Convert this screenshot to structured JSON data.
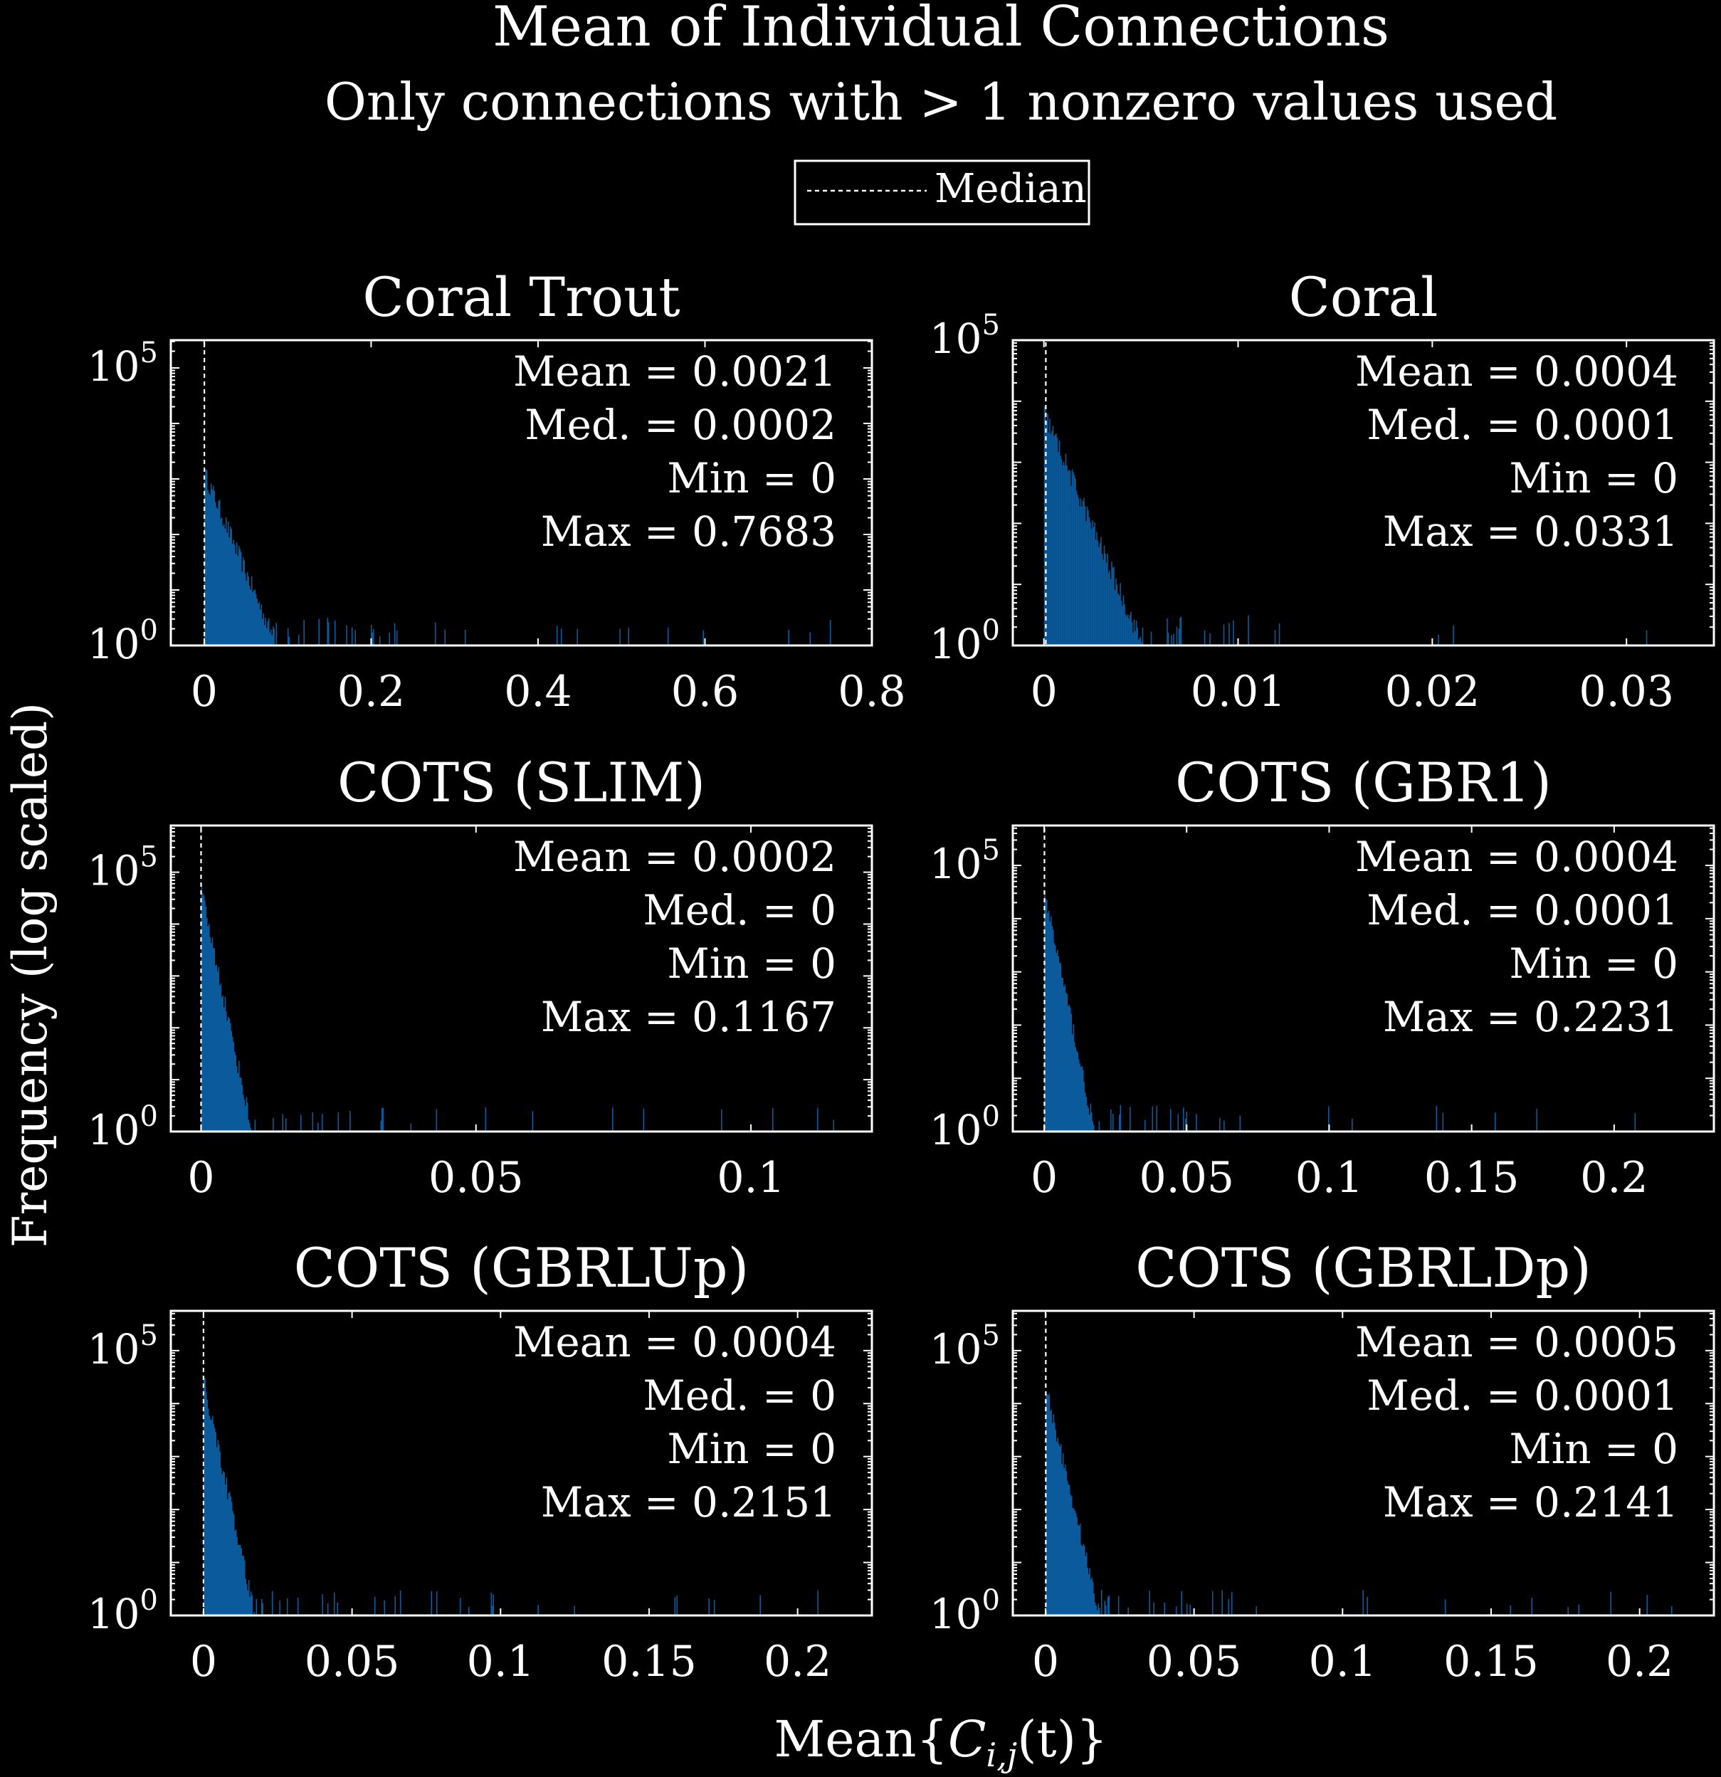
{
  "chart_data": {
    "title": "Mean of Individual Connections",
    "subtitle": "Only connections with > 1 nonzero values used",
    "legend": {
      "label": "Median",
      "style": "dotted",
      "placement": "top-center"
    },
    "xlabel": "Mean{C_i,j(t)}",
    "xlabel_parts": {
      "pre": "Mean{",
      "var": "C",
      "sub": "i,j",
      "post": "(t)}"
    },
    "ylabel": "Frequency (log scaled)",
    "bar_color": "#0a5a9c",
    "panels": [
      {
        "type": "bar",
        "title": "Coral Trout",
        "yscale": "log",
        "xlim": [
          -0.04,
          0.8
        ],
        "xticks": [
          "0",
          "0.2",
          "0.4",
          "0.6",
          "0.8"
        ],
        "xtick_values": [
          0,
          0.2,
          0.4,
          0.6,
          0.8
        ],
        "ylim_exp": [
          0,
          5.5
        ],
        "yticks": [
          0,
          5
        ],
        "median": 0.0002,
        "stats": [
          {
            "label": "Mean",
            "value": "0.0021"
          },
          {
            "label": "Med.",
            "value": "0.0002"
          },
          {
            "label": "Min",
            "value": "0"
          },
          {
            "label": "Max",
            "value": "0.7683"
          }
        ],
        "decay_scale": 0.025,
        "peak_exp": 3.1,
        "data_max": 0.7683
      },
      {
        "type": "bar",
        "title": "Coral",
        "yscale": "log",
        "xlim": [
          -0.0016,
          0.0345
        ],
        "xticks": [
          "0",
          "0.01",
          "0.02",
          "0.03"
        ],
        "xtick_values": [
          0,
          0.01,
          0.02,
          0.03
        ],
        "ylim_exp": [
          0,
          5
        ],
        "yticks": [
          0,
          5
        ],
        "median": 0.0001,
        "stats": [
          {
            "label": "Mean",
            "value": "0.0004"
          },
          {
            "label": "Med.",
            "value": "0.0001"
          },
          {
            "label": "Min",
            "value": "0"
          },
          {
            "label": "Max",
            "value": "0.0331"
          }
        ],
        "decay_scale": 0.0012,
        "peak_exp": 3.8,
        "data_max": 0.0331
      },
      {
        "type": "bar",
        "title": "COTS (SLIM)",
        "yscale": "log",
        "xlim": [
          -0.0055,
          0.122
        ],
        "xticks": [
          "0",
          "0.05",
          "0.1"
        ],
        "xtick_values": [
          0,
          0.05,
          0.1
        ],
        "ylim_exp": [
          0,
          5.9
        ],
        "yticks": [
          0,
          5
        ],
        "median": 0,
        "stats": [
          {
            "label": "Mean",
            "value": "0.0002"
          },
          {
            "label": "Med.",
            "value": "0"
          },
          {
            "label": "Min",
            "value": "0"
          },
          {
            "label": "Max",
            "value": "0.1167"
          }
        ],
        "decay_scale": 0.0018,
        "peak_exp": 4.6,
        "data_max": 0.1167
      },
      {
        "type": "bar",
        "title": "COTS (GBR1)",
        "yscale": "log",
        "xlim": [
          -0.011,
          0.235
        ],
        "xticks": [
          "0",
          "0.05",
          "0.1",
          "0.15",
          "0.2"
        ],
        "xtick_values": [
          0,
          0.05,
          0.1,
          0.15,
          0.2
        ],
        "ylim_exp": [
          0,
          5.75
        ],
        "yticks": [
          0,
          5
        ],
        "median": 0.0001,
        "stats": [
          {
            "label": "Mean",
            "value": "0.0004"
          },
          {
            "label": "Med.",
            "value": "0.0001"
          },
          {
            "label": "Min",
            "value": "0"
          },
          {
            "label": "Max",
            "value": "0.2231"
          }
        ],
        "decay_scale": 0.0035,
        "peak_exp": 4.5,
        "data_max": 0.2231
      },
      {
        "type": "bar",
        "title": "COTS (GBRLUp)",
        "yscale": "log",
        "xlim": [
          -0.011,
          0.225
        ],
        "xticks": [
          "0",
          "0.05",
          "0.1",
          "0.15",
          "0.2"
        ],
        "xtick_values": [
          0,
          0.05,
          0.1,
          0.15,
          0.2
        ],
        "ylim_exp": [
          0,
          5.75
        ],
        "yticks": [
          0,
          5
        ],
        "median": 0,
        "stats": [
          {
            "label": "Mean",
            "value": "0.0004"
          },
          {
            "label": "Med.",
            "value": "0"
          },
          {
            "label": "Min",
            "value": "0"
          },
          {
            "label": "Max",
            "value": "0.2151"
          }
        ],
        "decay_scale": 0.0035,
        "peak_exp": 4.4,
        "data_max": 0.2151
      },
      {
        "type": "bar",
        "title": "COTS (GBRLDp)",
        "yscale": "log",
        "xlim": [
          -0.011,
          0.225
        ],
        "xticks": [
          "0",
          "0.05",
          "0.1",
          "0.15",
          "0.2"
        ],
        "xtick_values": [
          0,
          0.05,
          0.1,
          0.15,
          0.2
        ],
        "ylim_exp": [
          0,
          5.75
        ],
        "yticks": [
          0,
          5
        ],
        "median": 0.0001,
        "stats": [
          {
            "label": "Mean",
            "value": "0.0005"
          },
          {
            "label": "Med.",
            "value": "0.0001"
          },
          {
            "label": "Min",
            "value": "0"
          },
          {
            "label": "Max",
            "value": "0.2141"
          }
        ],
        "decay_scale": 0.0038,
        "peak_exp": 4.3,
        "data_max": 0.2141
      }
    ]
  }
}
